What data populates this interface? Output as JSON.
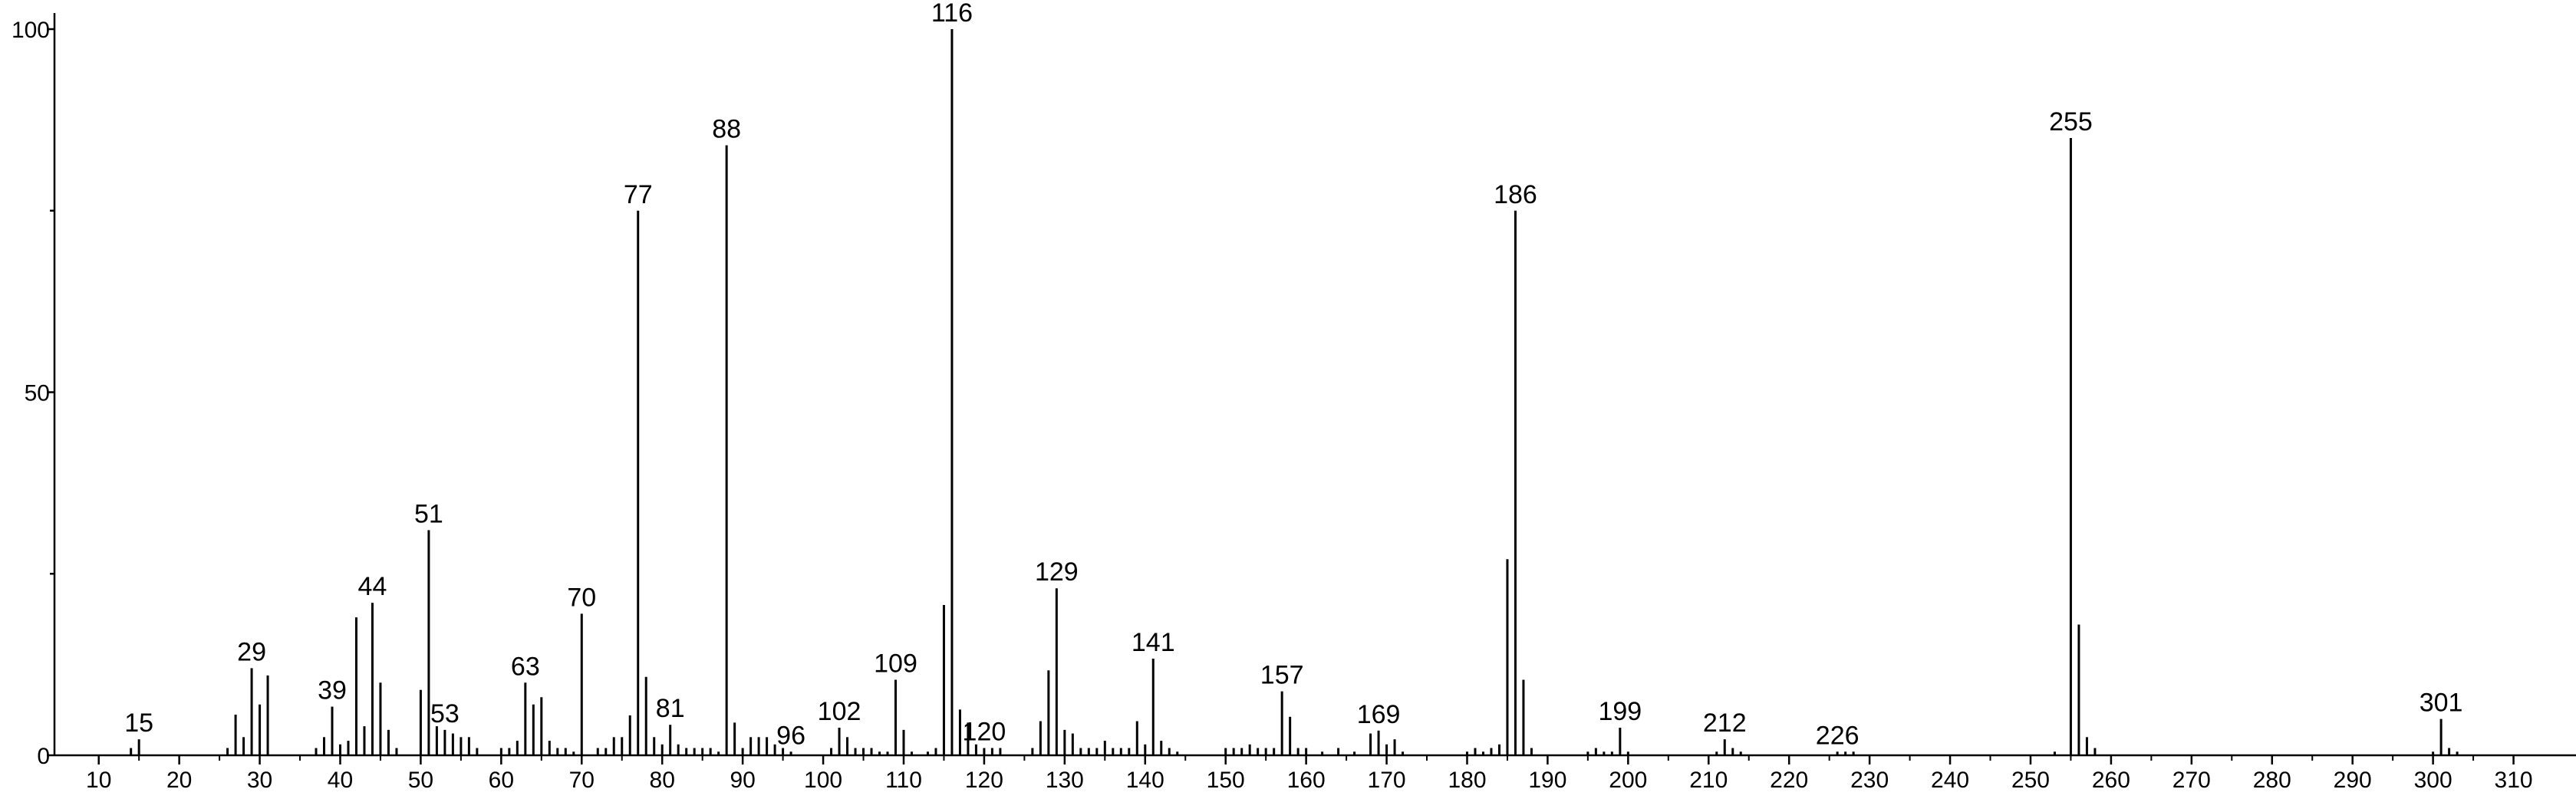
{
  "chart_data": {
    "type": "stem",
    "color": "#000000",
    "x": [
      14,
      15,
      26,
      27,
      28,
      29,
      30,
      31,
      37,
      38,
      39,
      40,
      41,
      42,
      43,
      44,
      45,
      46,
      47,
      50,
      51,
      52,
      53,
      54,
      55,
      56,
      57,
      60,
      61,
      62,
      63,
      64,
      65,
      66,
      67,
      68,
      69,
      70,
      72,
      73,
      74,
      75,
      76,
      77,
      78,
      79,
      80,
      81,
      82,
      83,
      84,
      85,
      86,
      87,
      88,
      89,
      90,
      91,
      92,
      93,
      94,
      95,
      96,
      101,
      102,
      103,
      104,
      105,
      106,
      107,
      108,
      109,
      110,
      111,
      113,
      114,
      115,
      116,
      117,
      118,
      119,
      120,
      121,
      122,
      126,
      127,
      128,
      129,
      130,
      131,
      132,
      133,
      134,
      135,
      136,
      137,
      138,
      139,
      140,
      141,
      142,
      143,
      144,
      150,
      151,
      152,
      153,
      154,
      155,
      156,
      157,
      158,
      159,
      160,
      162,
      164,
      166,
      168,
      169,
      170,
      171,
      172,
      180,
      181,
      182,
      183,
      184,
      185,
      186,
      187,
      188,
      195,
      196,
      197,
      198,
      199,
      200,
      211,
      212,
      213,
      214,
      226,
      227,
      228,
      253,
      255,
      256,
      257,
      258,
      300,
      301,
      302,
      303
    ],
    "values": [
      1,
      2.2,
      1,
      5.6,
      2.5,
      12,
      7,
      11,
      1,
      2.5,
      6.7,
      1.5,
      2,
      19,
      4,
      21,
      10,
      3.5,
      1,
      9,
      31,
      4,
      3.5,
      3,
      2.5,
      2.5,
      1,
      1,
      1,
      2,
      10,
      7,
      8,
      2,
      1,
      1,
      0.5,
      19.5,
      1,
      1,
      2.5,
      2.5,
      5.5,
      75,
      10.8,
      2.5,
      1.5,
      4.2,
      1.5,
      1,
      1,
      1,
      1,
      0.5,
      84,
      4.5,
      1,
      2.5,
      2.5,
      2.5,
      1.5,
      1,
      0.5,
      1,
      3.8,
      2.5,
      1,
      1,
      1,
      0.5,
      0.5,
      10.4,
      3.5,
      0.5,
      0.5,
      1,
      20.7,
      100,
      6.3,
      4.5,
      1.5,
      1,
      1,
      1,
      1,
      4.7,
      11.7,
      23,
      3.5,
      3,
      1,
      1,
      1,
      2,
      1,
      1,
      1,
      4.7,
      1.5,
      13.3,
      2,
      1,
      0.5,
      1,
      1,
      1,
      1.5,
      1,
      1,
      1,
      8.8,
      5.3,
      1,
      1,
      0.5,
      1,
      0.5,
      3,
      3.4,
      1.5,
      2.2,
      0.5,
      0.5,
      1,
      0.5,
      1,
      1.5,
      27,
      75,
      10.4,
      1,
      0.5,
      1,
      0.5,
      0.5,
      3.8,
      0.5,
      0.5,
      2.2,
      1,
      0.5,
      0.5,
      0.5,
      0.5,
      0.5,
      85,
      18,
      2.5,
      1,
      0.5,
      5,
      1,
      0.5
    ],
    "peak_labels": [
      15,
      29,
      39,
      44,
      51,
      53,
      63,
      70,
      77,
      81,
      88,
      96,
      102,
      109,
      116,
      120,
      129,
      141,
      157,
      169,
      186,
      199,
      212,
      226,
      255,
      301
    ],
    "xlim": [
      4.5,
      317
    ],
    "xticks": [
      10,
      20,
      30,
      40,
      50,
      60,
      70,
      80,
      90,
      100,
      110,
      120,
      130,
      140,
      150,
      160,
      170,
      180,
      190,
      200,
      210,
      220,
      230,
      240,
      250,
      260,
      270,
      280,
      290,
      300,
      310
    ],
    "xminorticks": [
      15,
      25,
      35,
      45,
      55,
      65,
      75,
      85,
      95,
      105,
      115,
      125,
      135,
      145,
      155,
      165,
      175,
      185,
      195,
      205,
      215,
      225,
      235,
      245,
      255,
      265,
      275,
      285,
      295,
      305
    ],
    "ylim": [
      0,
      100
    ],
    "yticks": [
      0,
      50,
      100
    ],
    "yminorticks": [
      25,
      75
    ]
  }
}
